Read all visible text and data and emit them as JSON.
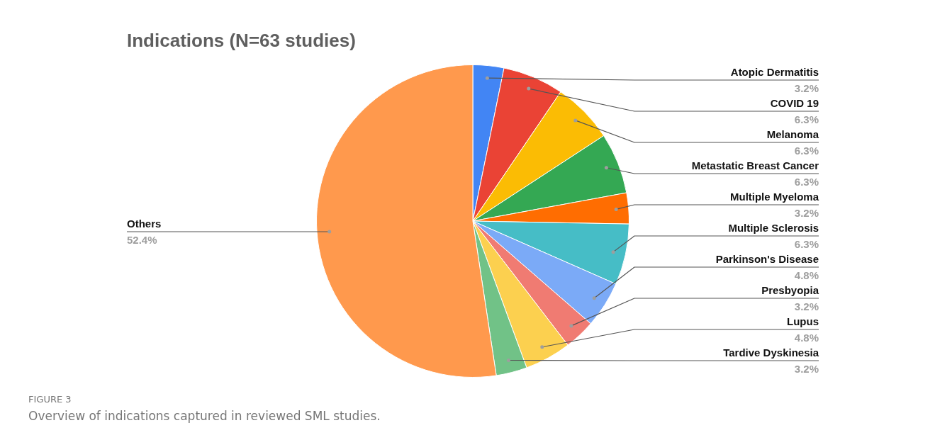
{
  "chart_data": {
    "type": "pie",
    "title": "Indications (N=63 studies)",
    "categories": [
      "Atopic Dermatitis",
      "COVID 19",
      "Melanoma",
      "Metastatic Breast Cancer",
      "Multiple Myeloma",
      "Multiple Sclerosis",
      "Parkinson's Disease",
      "Presbyopia",
      "Lupus",
      "Tardive Dyskinesia",
      "Others"
    ],
    "values": [
      3.2,
      6.3,
      6.3,
      6.3,
      3.2,
      6.3,
      4.8,
      3.2,
      4.8,
      3.2,
      52.4
    ],
    "value_labels": [
      "3.2%",
      "6.3%",
      "6.3%",
      "6.3%",
      "3.2%",
      "6.3%",
      "4.8%",
      "3.2%",
      "4.8%",
      "3.2%",
      "52.4%"
    ],
    "colors": [
      "#4285f4",
      "#ea4335",
      "#fbbc04",
      "#34a853",
      "#ff6d01",
      "#46bdc6",
      "#7baaf7",
      "#f07b72",
      "#fcd04f",
      "#71c287",
      "#ff994d"
    ],
    "legend": false,
    "annotations": [
      "FIGURE 3",
      "Overview of indications captured in reviewed SML studies."
    ]
  }
}
